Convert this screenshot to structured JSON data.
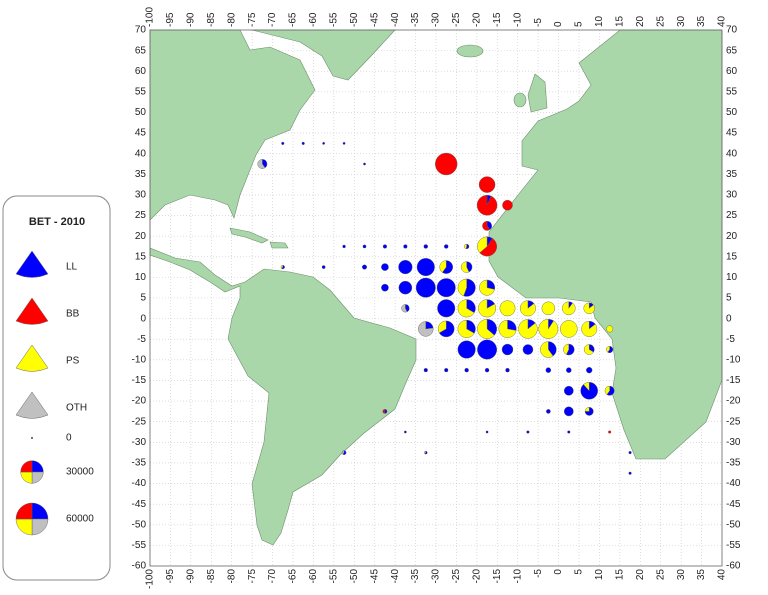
{
  "legend": {
    "title": "BET - 2010",
    "gears": [
      {
        "label": "LL",
        "color": "#0000ff"
      },
      {
        "label": "BB",
        "color": "#ff0000"
      },
      {
        "label": "PS",
        "color": "#ffff00"
      },
      {
        "label": "OTH",
        "color": "#c0c0c0"
      }
    ],
    "sizes": [
      0,
      30000,
      60000
    ]
  },
  "axes": {
    "lon_range": [
      -100,
      40
    ],
    "lat_range": [
      -60,
      70
    ],
    "lon_ticks": [
      -100,
      -95,
      -90,
      -85,
      -80,
      -75,
      -70,
      -65,
      -60,
      -55,
      -50,
      -45,
      -40,
      -35,
      -30,
      -25,
      -20,
      -15,
      -10,
      -5,
      0,
      5,
      10,
      15,
      20,
      25,
      30,
      35,
      40
    ],
    "lat_ticks": [
      70,
      65,
      60,
      55,
      50,
      45,
      40,
      35,
      30,
      25,
      20,
      15,
      10,
      5,
      0,
      -5,
      -10,
      -15,
      -20,
      -25,
      -30,
      -35,
      -40,
      -45,
      -50,
      -55,
      -60
    ]
  },
  "pies": [
    {
      "lon": -27.5,
      "lat": 37.5,
      "values": [
        0,
        28000,
        0,
        0
      ]
    },
    {
      "lon": -17.5,
      "lat": 32.5,
      "values": [
        0,
        15000,
        0,
        0
      ]
    },
    {
      "lon": -17.5,
      "lat": 27.5,
      "values": [
        1500,
        22000,
        0,
        0
      ]
    },
    {
      "lon": -12.5,
      "lat": 27.5,
      "values": [
        0,
        6000,
        0,
        0
      ]
    },
    {
      "lon": -17.5,
      "lat": 22.5,
      "values": [
        2000,
        3000,
        0,
        0
      ]
    },
    {
      "lon": -17.5,
      "lat": 17.5,
      "values": [
        2000,
        12000,
        8000,
        0
      ]
    },
    {
      "lon": -72.5,
      "lat": 37.5,
      "values": [
        2000,
        0,
        0,
        3000
      ]
    },
    {
      "lon": -22.5,
      "lat": 12.5,
      "values": [
        3000,
        0,
        4000,
        0
      ]
    },
    {
      "lon": -27.5,
      "lat": 12.5,
      "values": [
        6000,
        0,
        4000,
        0
      ]
    },
    {
      "lon": -32.5,
      "lat": 12.5,
      "values": [
        18000,
        0,
        0,
        0
      ]
    },
    {
      "lon": -37.5,
      "lat": 12.5,
      "values": [
        11000,
        0,
        0,
        0
      ]
    },
    {
      "lon": -42.5,
      "lat": 12.5,
      "values": [
        3000,
        0,
        0,
        0
      ]
    },
    {
      "lon": -17.5,
      "lat": 7.5,
      "values": [
        4000,
        0,
        10000,
        0
      ]
    },
    {
      "lon": -22.5,
      "lat": 7.5,
      "values": [
        10000,
        0,
        8000,
        0
      ]
    },
    {
      "lon": -27.5,
      "lat": 7.5,
      "values": [
        20000,
        0,
        0,
        0
      ]
    },
    {
      "lon": -32.5,
      "lat": 7.5,
      "values": [
        22000,
        0,
        0,
        0
      ]
    },
    {
      "lon": -37.5,
      "lat": 7.5,
      "values": [
        10000,
        0,
        0,
        0
      ]
    },
    {
      "lon": -42.5,
      "lat": 7.5,
      "values": [
        3000,
        0,
        0,
        0
      ]
    },
    {
      "lon": -37.5,
      "lat": 2.5,
      "values": [
        1500,
        0,
        0,
        2000
      ]
    },
    {
      "lon": -27.5,
      "lat": 2.5,
      "values": [
        18000,
        0,
        0,
        0
      ]
    },
    {
      "lon": -22.5,
      "lat": 2.5,
      "values": [
        6000,
        0,
        12000,
        0
      ]
    },
    {
      "lon": -17.5,
      "lat": 2.5,
      "values": [
        3000,
        0,
        15000,
        0
      ]
    },
    {
      "lon": -12.5,
      "lat": 2.5,
      "values": [
        0,
        0,
        14000,
        0
      ]
    },
    {
      "lon": -7.5,
      "lat": 2.5,
      "values": [
        2000,
        0,
        12000,
        0
      ]
    },
    {
      "lon": -2.5,
      "lat": 2.5,
      "values": [
        0,
        0,
        10000,
        0
      ]
    },
    {
      "lon": 2.5,
      "lat": 2.5,
      "values": [
        1000,
        0,
        9000,
        0
      ]
    },
    {
      "lon": 7.5,
      "lat": 2.5,
      "values": [
        1000,
        0,
        6000,
        0
      ]
    },
    {
      "lon": -32.5,
      "lat": -2.5,
      "values": [
        3000,
        0,
        0,
        10000
      ]
    },
    {
      "lon": -27.5,
      "lat": -2.5,
      "values": [
        10000,
        0,
        5000,
        0
      ]
    },
    {
      "lon": -22.5,
      "lat": -2.5,
      "values": [
        6000,
        0,
        12000,
        0
      ]
    },
    {
      "lon": -17.5,
      "lat": -2.5,
      "values": [
        8000,
        0,
        14000,
        0
      ]
    },
    {
      "lon": -12.5,
      "lat": -2.5,
      "values": [
        5000,
        0,
        13000,
        0
      ]
    },
    {
      "lon": -7.5,
      "lat": -2.5,
      "values": [
        3000,
        0,
        18000,
        0
      ]
    },
    {
      "lon": -2.5,
      "lat": -2.5,
      "values": [
        2000,
        0,
        20000,
        0
      ]
    },
    {
      "lon": 2.5,
      "lat": -2.5,
      "values": [
        0,
        0,
        17000,
        0
      ]
    },
    {
      "lon": 7.5,
      "lat": -2.5,
      "values": [
        2000,
        0,
        12000,
        0
      ]
    },
    {
      "lon": 12.5,
      "lat": -2.5,
      "values": [
        0,
        0,
        2500,
        0
      ]
    },
    {
      "lon": -22.5,
      "lat": -7.5,
      "values": [
        18000,
        0,
        0,
        0
      ]
    },
    {
      "lon": -17.5,
      "lat": -7.5,
      "values": [
        22000,
        0,
        0,
        0
      ]
    },
    {
      "lon": -12.5,
      "lat": -7.5,
      "values": [
        7000,
        0,
        0,
        0
      ]
    },
    {
      "lon": -7.5,
      "lat": -7.5,
      "values": [
        6000,
        0,
        0,
        0
      ]
    },
    {
      "lon": -2.5,
      "lat": -7.5,
      "values": [
        6000,
        0,
        9000,
        0
      ]
    },
    {
      "lon": 2.5,
      "lat": -7.5,
      "values": [
        4000,
        0,
        3000,
        0
      ]
    },
    {
      "lon": 7.5,
      "lat": -7.5,
      "values": [
        2000,
        0,
        4000,
        0
      ]
    },
    {
      "lon": 12.5,
      "lat": -7.5,
      "values": [
        1500,
        0,
        1000,
        0
      ]
    },
    {
      "lon": -2.5,
      "lat": -12.5,
      "values": [
        1500,
        0,
        0,
        0
      ]
    },
    {
      "lon": 2.5,
      "lat": -12.5,
      "values": [
        1500,
        0,
        0,
        0
      ]
    },
    {
      "lon": 7.5,
      "lat": -12.5,
      "values": [
        2000,
        0,
        0,
        0
      ]
    },
    {
      "lon": 2.5,
      "lat": -17.5,
      "values": [
        5000,
        0,
        0,
        0
      ]
    },
    {
      "lon": 7.5,
      "lat": -17.5,
      "values": [
        15000,
        0,
        2000,
        0
      ]
    },
    {
      "lon": 12.5,
      "lat": -17.5,
      "values": [
        3000,
        0,
        2000,
        0
      ]
    },
    {
      "lon": 2.5,
      "lat": -22.5,
      "values": [
        5000,
        0,
        0,
        0
      ]
    },
    {
      "lon": 7.5,
      "lat": -22.5,
      "values": [
        3000,
        0,
        1000,
        0
      ]
    },
    {
      "lon": -2.5,
      "lat": -22.5,
      "values": [
        1000,
        0,
        0,
        0
      ]
    },
    {
      "lon": -42.5,
      "lat": -22.5,
      "values": [
        500,
        500,
        0,
        0
      ]
    },
    {
      "lon": -52.5,
      "lat": -32.5,
      "values": [
        600,
        0,
        0,
        400
      ]
    },
    {
      "lon": -67.5,
      "lat": 42.5,
      "values": [
        400,
        0,
        0,
        0
      ]
    },
    {
      "lon": -62.5,
      "lat": 42.5,
      "values": [
        400,
        0,
        0,
        0
      ]
    },
    {
      "lon": -57.5,
      "lat": 42.5,
      "values": [
        300,
        0,
        0,
        0
      ]
    },
    {
      "lon": -52.5,
      "lat": 42.5,
      "values": [
        300,
        0,
        0,
        0
      ]
    },
    {
      "lon": -47.5,
      "lat": 37.5,
      "values": [
        300,
        0,
        0,
        0
      ]
    },
    {
      "lon": -52.5,
      "lat": 17.5,
      "values": [
        500,
        0,
        0,
        0
      ]
    },
    {
      "lon": -47.5,
      "lat": 17.5,
      "values": [
        600,
        0,
        0,
        0
      ]
    },
    {
      "lon": -42.5,
      "lat": 17.5,
      "values": [
        800,
        0,
        0,
        0
      ]
    },
    {
      "lon": -37.5,
      "lat": 17.5,
      "values": [
        800,
        0,
        0,
        0
      ]
    },
    {
      "lon": -32.5,
      "lat": 17.5,
      "values": [
        900,
        0,
        0,
        0
      ]
    },
    {
      "lon": -27.5,
      "lat": 17.5,
      "values": [
        900,
        0,
        0,
        0
      ]
    },
    {
      "lon": -22.5,
      "lat": 17.5,
      "values": [
        700,
        0,
        600,
        0
      ]
    },
    {
      "lon": -67.5,
      "lat": 12.5,
      "values": [
        500,
        0,
        300,
        0
      ]
    },
    {
      "lon": -57.5,
      "lat": 12.5,
      "values": [
        600,
        0,
        0,
        0
      ]
    },
    {
      "lon": -47.5,
      "lat": 12.5,
      "values": [
        1200,
        0,
        0,
        0
      ]
    },
    {
      "lon": -32.5,
      "lat": -12.5,
      "values": [
        800,
        0,
        0,
        0
      ]
    },
    {
      "lon": -27.5,
      "lat": -12.5,
      "values": [
        800,
        0,
        0,
        0
      ]
    },
    {
      "lon": -22.5,
      "lat": -12.5,
      "values": [
        900,
        0,
        0,
        0
      ]
    },
    {
      "lon": -17.5,
      "lat": -12.5,
      "values": [
        900,
        0,
        0,
        0
      ]
    },
    {
      "lon": -12.5,
      "lat": -12.5,
      "values": [
        900,
        0,
        0,
        0
      ]
    },
    {
      "lon": -37.5,
      "lat": -27.5,
      "values": [
        300,
        0,
        0,
        0
      ]
    },
    {
      "lon": -32.5,
      "lat": -32.5,
      "values": [
        300,
        0,
        0,
        200
      ]
    },
    {
      "lon": -17.5,
      "lat": -27.5,
      "values": [
        300,
        0,
        0,
        0
      ]
    },
    {
      "lon": -7.5,
      "lat": -27.5,
      "values": [
        400,
        0,
        0,
        0
      ]
    },
    {
      "lon": 2.5,
      "lat": -27.5,
      "values": [
        400,
        0,
        0,
        0
      ]
    },
    {
      "lon": 12.5,
      "lat": -27.5,
      "values": [
        0,
        400,
        0,
        0
      ]
    },
    {
      "lon": 17.5,
      "lat": -32.5,
      "values": [
        400,
        0,
        0,
        0
      ]
    },
    {
      "lon": 17.5,
      "lat": -37.5,
      "values": [
        400,
        0,
        0,
        0
      ]
    }
  ]
}
